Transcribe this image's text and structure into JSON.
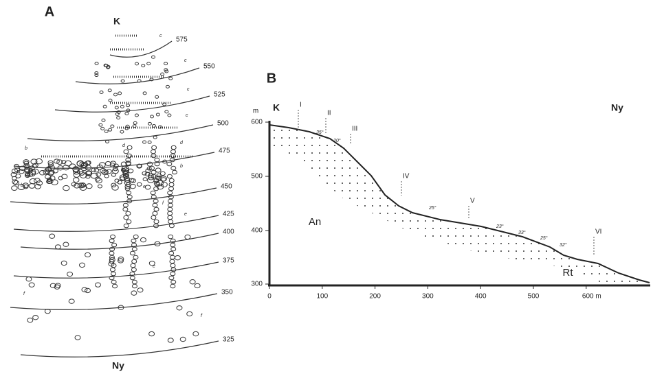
{
  "panel_a": {
    "label": "A",
    "top_label": "K",
    "bottom_label": "Ny",
    "contours": [
      "575",
      "550",
      "525",
      "500",
      "475",
      "450",
      "425",
      "400",
      "375",
      "350",
      "325"
    ],
    "annotations": [
      "c",
      "c",
      "c",
      "c",
      "d",
      "d",
      "b",
      "b",
      "b",
      "c",
      "e",
      "e",
      "f",
      "e",
      "f",
      "f"
    ]
  },
  "panel_b": {
    "label": "B",
    "left_label": "K",
    "right_label": "Ny",
    "y_unit": "m",
    "yticks": [
      "600",
      "500",
      "400",
      "300"
    ],
    "xticks": [
      "0",
      "100",
      "200",
      "300",
      "400",
      "500",
      "600 m"
    ],
    "stations": [
      "I",
      "II",
      "III",
      "IV",
      "V",
      "VI"
    ],
    "areas": [
      "An",
      "Rt"
    ],
    "slope_angles": [
      "35°",
      "20°",
      "25°",
      "23°",
      "33°",
      "25°",
      "32°"
    ]
  }
}
